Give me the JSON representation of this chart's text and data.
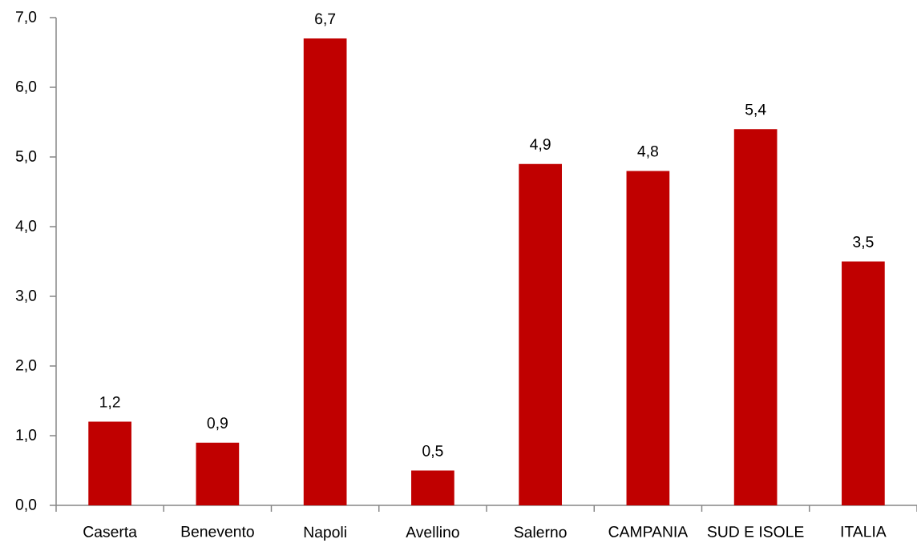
{
  "chart_data": {
    "type": "bar",
    "categories": [
      "Caserta",
      "Benevento",
      "Napoli",
      "Avellino",
      "Salerno",
      "CAMPANIA",
      "SUD E ISOLE",
      "ITALIA"
    ],
    "values": [
      1.2,
      0.9,
      6.7,
      0.5,
      4.9,
      4.8,
      5.4,
      3.5
    ],
    "value_labels": [
      "1,2",
      "0,9",
      "6,7",
      "0,5",
      "4,9",
      "4,8",
      "5,4",
      "3,5"
    ],
    "color": "#c00000",
    "ylim": [
      0,
      7
    ],
    "yticks": [
      {
        "value": 0,
        "label": "0,0"
      },
      {
        "value": 1,
        "label": "1,0"
      },
      {
        "value": 2,
        "label": "2,0"
      },
      {
        "value": 3,
        "label": "3,0"
      },
      {
        "value": 4,
        "label": "4,0"
      },
      {
        "value": 5,
        "label": "5,0"
      },
      {
        "value": 6,
        "label": "6,0"
      },
      {
        "value": 7,
        "label": "7,0"
      }
    ]
  }
}
